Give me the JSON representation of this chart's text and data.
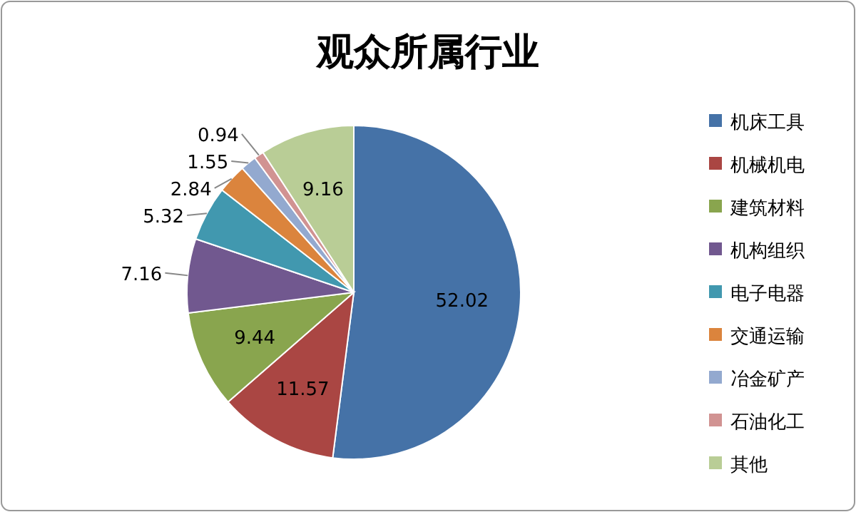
{
  "chart_data": {
    "type": "pie",
    "title": "观众所属行业",
    "categories": [
      "机床工具",
      "机械机电",
      "建筑材料",
      "机构组织",
      "电子电器",
      "交通运输",
      "冶金矿产",
      "石油化工",
      "其他"
    ],
    "values": [
      52.02,
      11.57,
      9.44,
      7.16,
      5.32,
      2.84,
      1.55,
      0.94,
      9.16
    ],
    "colors": [
      "#4572a7",
      "#aa4643",
      "#89a54e",
      "#71588f",
      "#4198af",
      "#db843d",
      "#93a9cf",
      "#d19392",
      "#b9cd96"
    ],
    "data_labels": true,
    "legend": "right"
  }
}
